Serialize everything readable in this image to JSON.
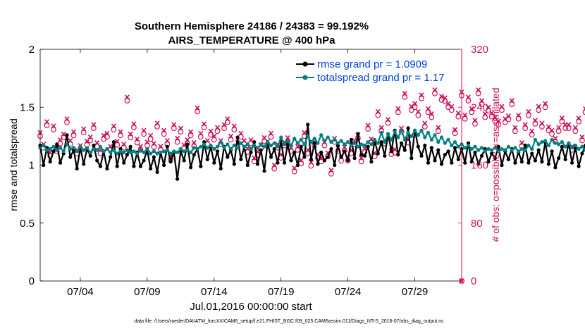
{
  "chart_data": {
    "type": "line",
    "title": "Southern Hemisphere 24186 / 24383 = 99.192%",
    "subtitle": "AIRS_TEMPERATURE @ 400 hPa",
    "xlabel": "Jul.01,2016 00:00:00 start",
    "ylabel": "rmse and totalspread",
    "y2label": "# of obs: o=possible; ×=assimilated",
    "footer": "data file: /Users/raeder/DAI/ATM_forcXX/CAM6_setup/f.e21.FHIST_BGC.f09_025.CAM6assim.011/Diags_NTrS_2016-07/obs_diag_output.nc",
    "x_start_day": 1,
    "x_step_days": 0.25,
    "xlim": [
      1,
      32.5
    ],
    "ylim": [
      0,
      2
    ],
    "y2lim": [
      0,
      320
    ],
    "xticks": [
      4,
      9,
      14,
      19,
      24,
      29
    ],
    "xtick_labels": [
      "07/04",
      "07/09",
      "07/14",
      "07/19",
      "07/24",
      "07/29"
    ],
    "yticks": [
      0,
      0.5,
      1,
      1.5,
      2
    ],
    "ytick_labels": [
      "0",
      "0.5",
      "1",
      "1.5",
      "2"
    ],
    "y2ticks": [
      0,
      80,
      160,
      240,
      320
    ],
    "y2tick_labels": [
      "0",
      "80",
      "160",
      "240",
      "320"
    ],
    "legend_position": "top-right",
    "grid": false,
    "colors": {
      "rmse": "#000000",
      "totalspread": "#008080",
      "obs": "#d0105a",
      "legend_text": "#0044e0"
    },
    "series": [
      {
        "name": "rmse grand pr = 1.0909",
        "axis": "left",
        "values": [
          1.17,
          1.0,
          1.15,
          1.03,
          1.12,
          1.18,
          1.02,
          1.1,
          1.26,
          1.07,
          1.13,
          0.97,
          1.15,
          1.01,
          1.14,
          1.08,
          1.17,
          1.04,
          0.99,
          1.12,
          0.97,
          1.07,
          1.2,
          0.99,
          1.14,
          1.02,
          1.09,
          1.16,
          0.99,
          1.11,
          0.99,
          1.04,
          1.13,
          0.97,
          1.07,
          0.94,
          1.11,
          1.0,
          1.16,
          1.03,
          1.11,
          0.88,
          1.12,
          1.04,
          1.18,
          0.98,
          1.09,
          1.14,
          0.99,
          1.2,
          1.05,
          1.16,
          1.02,
          1.12,
          0.97,
          1.16,
          1.07,
          1.13,
          1.01,
          1.24,
          1.05,
          1.16,
          1.0,
          1.11,
          1.2,
          1.01,
          1.13,
          0.95,
          1.19,
          1.07,
          1.14,
          1.02,
          1.21,
          1.02,
          1.18,
          1.04,
          1.11,
          1.0,
          1.16,
          1.07,
          1.35,
          1.05,
          1.19,
          1.01,
          1.11,
          1.04,
          1.07,
          1.14,
          1.0,
          1.17,
          1.07,
          1.12,
          1.04,
          1.22,
          1.06,
          1.27,
          1.09,
          1.08,
          1.16,
          1.03,
          1.21,
          1.1,
          1.2,
          1.08,
          1.27,
          1.12,
          1.3,
          1.09,
          1.19,
          1.13,
          1.32,
          1.06,
          1.3,
          1.16,
          1.08,
          1.17,
          1.02,
          1.15,
          1.04,
          1.13,
          1.01,
          1.09,
          1.12,
          1.02,
          1.15,
          1.05,
          1.14,
          1.02,
          1.19,
          1.03,
          1.11,
          1.01,
          1.08,
          1.14,
          1.03,
          1.1,
          1.06,
          1.16,
          1.0,
          1.12,
          1.05,
          1.14,
          1.02,
          1.11,
          1.03,
          1.17,
          1.02,
          1.1,
          1.04,
          1.13,
          1.03,
          1.2,
          1.01,
          1.12,
          0.98,
          1.06,
          1.16,
          1.05,
          1.19,
          1.02,
          1.15,
          0.99,
          1.1,
          1.17,
          1.04,
          1.12,
          1.01,
          1.15,
          1.02,
          1.1,
          1.04,
          1.13,
          1.03,
          1.09,
          1.06,
          1.16,
          1.01,
          1.12,
          1.04,
          1.14,
          1.02,
          1.08,
          1.13,
          1.05,
          1.11,
          1.07,
          1.16,
          1.03,
          1.12,
          1.06,
          1.04
        ]
      },
      {
        "name": "totalspread grand pr = 1.17",
        "axis": "left",
        "values": [
          1.15,
          1.17,
          1.13,
          1.14,
          1.16,
          1.13,
          1.15,
          1.12,
          1.18,
          1.14,
          1.15,
          1.12,
          1.16,
          1.13,
          1.15,
          1.11,
          1.14,
          1.13,
          1.16,
          1.12,
          1.14,
          1.11,
          1.13,
          1.1,
          1.12,
          1.11,
          1.13,
          1.11,
          1.12,
          1.1,
          1.13,
          1.11,
          1.14,
          1.1,
          1.12,
          1.1,
          1.11,
          1.12,
          1.13,
          1.1,
          1.12,
          1.11,
          1.14,
          1.12,
          1.13,
          1.11,
          1.15,
          1.14,
          1.16,
          1.18,
          1.15,
          1.17,
          1.14,
          1.16,
          1.2,
          1.15,
          1.18,
          1.14,
          1.17,
          1.15,
          1.19,
          1.16,
          1.18,
          1.14,
          1.17,
          1.15,
          1.18,
          1.16,
          1.2,
          1.17,
          1.19,
          1.16,
          1.24,
          1.18,
          1.21,
          1.17,
          1.23,
          1.19,
          1.22,
          1.18,
          1.25,
          1.2,
          1.23,
          1.19,
          1.26,
          1.21,
          1.24,
          1.2,
          1.22,
          1.19,
          1.21,
          1.18,
          1.2,
          1.17,
          1.19,
          1.16,
          1.18,
          1.17,
          1.2,
          1.18,
          1.22,
          1.19,
          1.28,
          1.2,
          1.27,
          1.22,
          1.29,
          1.24,
          1.3,
          1.22,
          1.28,
          1.25,
          1.3,
          1.26,
          1.3,
          1.24,
          1.28,
          1.22,
          1.26,
          1.2,
          1.24,
          1.19,
          1.22,
          1.17,
          1.2,
          1.16,
          1.18,
          1.15,
          1.17,
          1.14,
          1.16,
          1.13,
          1.15,
          1.12,
          1.14,
          1.13,
          1.15,
          1.12,
          1.14,
          1.13,
          1.16,
          1.13,
          1.15,
          1.12,
          1.14,
          1.13,
          1.17,
          1.14,
          1.22,
          1.18,
          1.2,
          1.21,
          1.17,
          1.22,
          1.19,
          1.18,
          1.2,
          1.16,
          1.19,
          1.15,
          1.17,
          1.14,
          1.16,
          1.13,
          1.15,
          1.14,
          1.16,
          1.13,
          1.15,
          1.17,
          1.14,
          1.18,
          1.16,
          1.2,
          1.17,
          1.19,
          1.21,
          1.18,
          1.2,
          1.17,
          1.22,
          1.19,
          1.21,
          1.18,
          1.2,
          1.22,
          1.19,
          1.21
        ]
      },
      {
        "name": "obs possible",
        "axis": "right",
        "marker": "circle",
        "values": [
          200,
          184,
          215,
          173,
          209,
          179,
          190,
          198,
          219,
          189,
          201,
          176,
          182,
          205,
          188,
          194,
          211,
          186,
          176,
          196,
          199,
          181,
          209,
          188,
          201,
          184,
          249,
          198,
          212,
          191,
          181,
          203,
          187,
          196,
          185,
          213,
          181,
          203,
          189,
          167,
          211,
          192,
          206,
          183,
          190,
          201,
          186,
          234,
          199,
          212,
          189,
          202,
          195,
          207,
          189,
          211,
          219,
          195,
          209,
          186,
          199,
          189,
          178,
          190,
          165,
          174,
          183,
          193,
          188,
          199,
          155,
          184,
          170,
          187,
          193,
          179,
          151,
          181,
          162,
          200,
          176,
          159,
          187,
          170,
          165,
          187,
          172,
          148,
          192,
          179,
          166,
          180,
          166,
          176,
          189,
          197,
          165,
          178,
          210,
          191,
          172,
          229,
          207,
          190,
          218,
          175,
          177,
          233,
          206,
          254,
          191,
          236,
          240,
          229,
          252,
          213,
          233,
          226,
          259,
          207,
          250,
          248,
          240,
          236,
          204,
          227,
          256,
          224,
          249,
          233,
          217,
          259,
          244,
          226,
          235,
          227,
          221,
          216,
          236,
          219,
          223,
          244,
          207,
          224,
          186,
          211,
          229,
          202,
          217,
          236,
          213,
          240,
          208,
          203,
          192,
          207,
          220,
          211,
          211,
          181,
          207,
          220,
          194,
          233,
          243,
          218,
          211,
          242,
          212,
          247,
          209,
          243,
          232,
          211,
          201,
          223,
          241,
          227,
          205,
          213,
          204,
          172,
          214,
          226,
          197,
          218,
          234,
          206,
          213,
          221,
          215,
          208
        ]
      },
      {
        "name": "obs assimilated",
        "axis": "right",
        "marker": "x",
        "values": [
          205,
          189,
          220,
          178,
          214,
          184,
          195,
          203,
          224,
          194,
          206,
          181,
          187,
          210,
          193,
          199,
          216,
          191,
          181,
          201,
          204,
          186,
          214,
          193,
          206,
          189,
          254,
          203,
          217,
          196,
          186,
          208,
          192,
          201,
          190,
          218,
          186,
          208,
          194,
          172,
          216,
          197,
          211,
          188,
          195,
          206,
          191,
          239,
          204,
          217,
          194,
          207,
          200,
          212,
          194,
          216,
          224,
          200,
          214,
          191,
          204,
          194,
          183,
          195,
          170,
          179,
          188,
          198,
          193,
          204,
          160,
          189,
          175,
          192,
          198,
          184,
          156,
          186,
          167,
          205,
          181,
          164,
          192,
          175,
          170,
          192,
          177,
          153,
          197,
          184,
          171,
          185,
          171,
          181,
          194,
          202,
          170,
          183,
          215,
          196,
          177,
          234,
          212,
          195,
          223,
          180,
          182,
          238,
          211,
          259,
          196,
          241,
          245,
          234,
          257,
          218,
          238,
          231,
          264,
          212,
          255,
          253,
          245,
          241,
          209,
          232,
          261,
          229,
          254,
          238,
          222,
          264,
          249,
          231,
          240,
          232,
          226,
          221,
          241,
          224,
          228,
          249,
          212,
          229,
          191,
          216,
          234,
          207,
          222,
          241,
          218,
          245,
          213,
          208,
          197,
          212,
          225,
          216,
          216,
          186,
          212,
          225,
          199,
          238,
          248,
          223,
          216,
          247,
          217,
          252,
          214,
          248,
          237,
          216,
          206,
          228,
          246,
          232,
          210,
          218,
          209,
          177,
          219,
          231,
          202,
          223,
          239,
          211,
          218,
          226,
          220,
          213
        ]
      }
    ],
    "last_x_obs": 0
  }
}
